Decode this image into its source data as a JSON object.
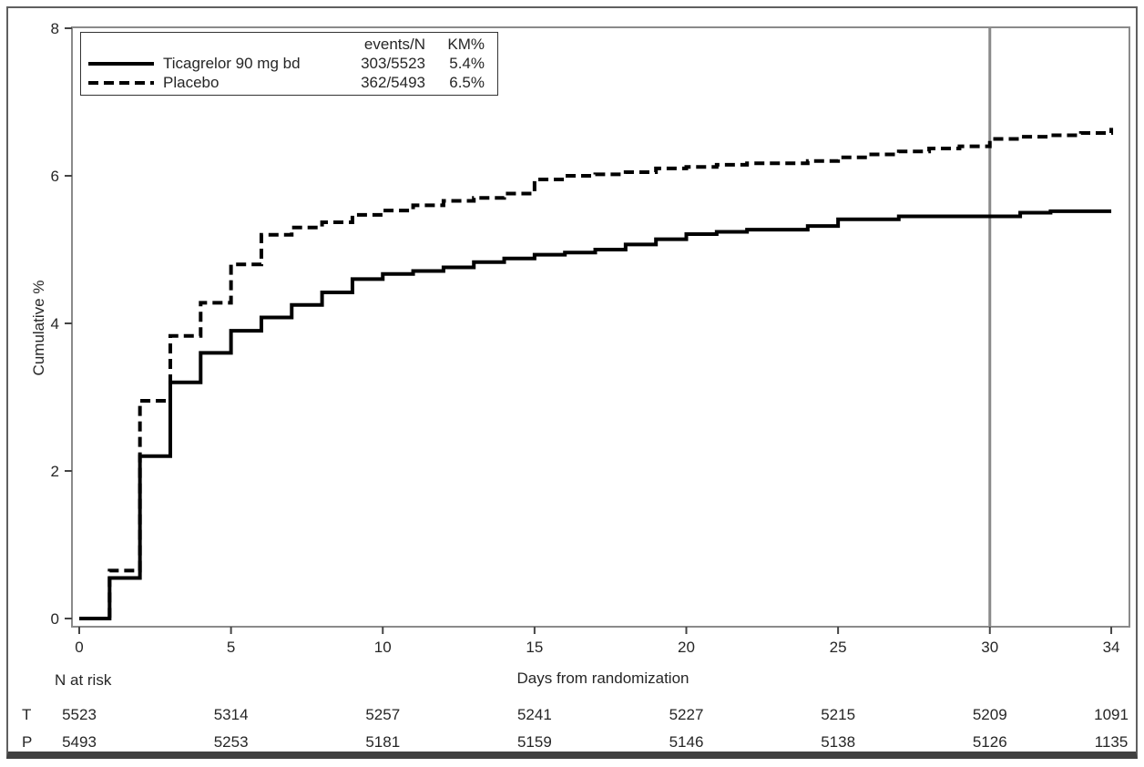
{
  "figure": {
    "background": "#ffffff",
    "frame_color": "#5f5f5f",
    "text_color": "#262626"
  },
  "chart_data": {
    "type": "line",
    "subtype": "kaplan-meier-step",
    "title": "",
    "xlabel": "Days from randomization",
    "ylabel": "Cumulative %",
    "xlim": [
      0,
      34.6
    ],
    "ylim": [
      0,
      8
    ],
    "xticks": [
      0,
      5,
      10,
      15,
      20,
      25,
      30,
      34
    ],
    "yticks": [
      0,
      2,
      4,
      6,
      8
    ],
    "grid": false,
    "legend_position": "top-left-inside",
    "axis_box_color": "#8a8a8a",
    "tick_color": "#444444",
    "reference_line": {
      "x": 30,
      "color": "#8a8a8a",
      "width": 3
    },
    "legend": {
      "header_events": "events/N",
      "header_km": "KM%"
    },
    "series": [
      {
        "name": "Ticagrelor 90 mg bd",
        "style": "solid",
        "color": "#000000",
        "events_n": "303/5523",
        "km_pct": "5.4%",
        "points": [
          [
            0,
            0
          ],
          [
            1,
            0.55
          ],
          [
            2,
            2.2
          ],
          [
            3,
            3.2
          ],
          [
            4,
            3.6
          ],
          [
            5,
            3.9
          ],
          [
            6,
            4.08
          ],
          [
            7,
            4.25
          ],
          [
            8,
            4.42
          ],
          [
            9,
            4.6
          ],
          [
            10,
            4.67
          ],
          [
            11,
            4.71
          ],
          [
            12,
            4.76
          ],
          [
            13,
            4.83
          ],
          [
            14,
            4.88
          ],
          [
            15,
            4.93
          ],
          [
            16,
            4.96
          ],
          [
            17,
            5.0
          ],
          [
            18,
            5.07
          ],
          [
            19,
            5.14
          ],
          [
            20,
            5.21
          ],
          [
            21,
            5.24
          ],
          [
            22,
            5.27
          ],
          [
            24,
            5.32
          ],
          [
            25,
            5.41
          ],
          [
            27,
            5.45
          ],
          [
            31,
            5.5
          ],
          [
            32,
            5.52
          ],
          [
            34,
            5.52
          ]
        ]
      },
      {
        "name": "Placebo",
        "style": "dashed",
        "color": "#000000",
        "events_n": "362/5493",
        "km_pct": "6.5%",
        "points": [
          [
            0,
            0
          ],
          [
            1,
            0.65
          ],
          [
            2,
            2.95
          ],
          [
            3,
            3.83
          ],
          [
            4,
            4.28
          ],
          [
            5,
            4.8
          ],
          [
            6,
            5.2
          ],
          [
            7,
            5.3
          ],
          [
            8,
            5.37
          ],
          [
            9,
            5.47
          ],
          [
            10,
            5.53
          ],
          [
            11,
            5.6
          ],
          [
            12,
            5.66
          ],
          [
            13,
            5.7
          ],
          [
            14,
            5.76
          ],
          [
            15,
            5.95
          ],
          [
            16,
            6.0
          ],
          [
            17,
            6.02
          ],
          [
            18,
            6.05
          ],
          [
            19,
            6.1
          ],
          [
            20,
            6.12
          ],
          [
            21,
            6.15
          ],
          [
            22,
            6.17
          ],
          [
            24,
            6.2
          ],
          [
            25,
            6.25
          ],
          [
            26,
            6.29
          ],
          [
            27,
            6.33
          ],
          [
            28,
            6.37
          ],
          [
            29,
            6.4
          ],
          [
            30,
            6.5
          ],
          [
            31,
            6.53
          ],
          [
            32,
            6.55
          ],
          [
            33,
            6.58
          ],
          [
            34,
            6.65
          ]
        ]
      }
    ],
    "risk_table": {
      "title": "N at risk",
      "days": [
        0,
        5,
        10,
        15,
        20,
        25,
        30,
        34
      ],
      "rows": [
        {
          "label": "T",
          "values": [
            "5523",
            "5314",
            "5257",
            "5241",
            "5227",
            "5215",
            "5209",
            "1091"
          ]
        },
        {
          "label": "P",
          "values": [
            "5493",
            "5253",
            "5181",
            "5159",
            "5146",
            "5138",
            "5126",
            "1135"
          ]
        }
      ]
    }
  }
}
